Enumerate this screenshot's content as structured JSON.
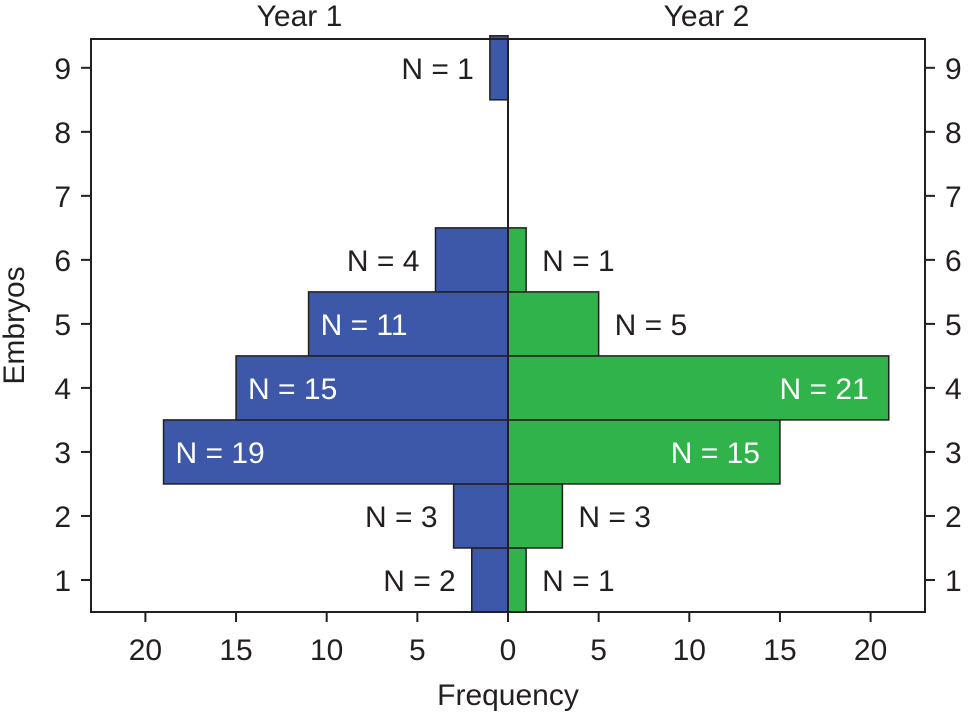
{
  "chart_data": {
    "type": "bar",
    "orientation": "horizontal",
    "layout": "back-to-back",
    "xlabel": "Frequency",
    "ylabel": "Embryos",
    "categories": [
      1,
      2,
      3,
      4,
      5,
      6,
      7,
      8,
      9
    ],
    "xlim": [
      -23,
      23
    ],
    "ylim": [
      0.5,
      9.45
    ],
    "x_ticks": [
      -20,
      -15,
      -10,
      -5,
      0,
      5,
      10,
      15,
      20
    ],
    "x_tick_labels": [
      "20",
      "15",
      "10",
      "5",
      "0",
      "5",
      "10",
      "15",
      "20"
    ],
    "y_ticks": [
      1,
      2,
      3,
      4,
      5,
      6,
      7,
      8,
      9
    ],
    "grid": false,
    "legend": "none",
    "series": [
      {
        "name": "Year 1",
        "side": "left",
        "color": "#3d57a9",
        "values": [
          2,
          3,
          19,
          15,
          11,
          4,
          0,
          0,
          1
        ],
        "labels": [
          "N = 2",
          "N = 3",
          "N = 19",
          "N = 15",
          "N = 11",
          "N = 4",
          "",
          "",
          "N = 1"
        ]
      },
      {
        "name": "Year 2",
        "side": "right",
        "color": "#2fb34a",
        "values": [
          1,
          3,
          15,
          21,
          5,
          1,
          0,
          0,
          0
        ],
        "labels": [
          "N = 1",
          "N = 3",
          "N = 15",
          "N = 21",
          "N = 5",
          "N = 1",
          "",
          "",
          ""
        ]
      }
    ]
  }
}
